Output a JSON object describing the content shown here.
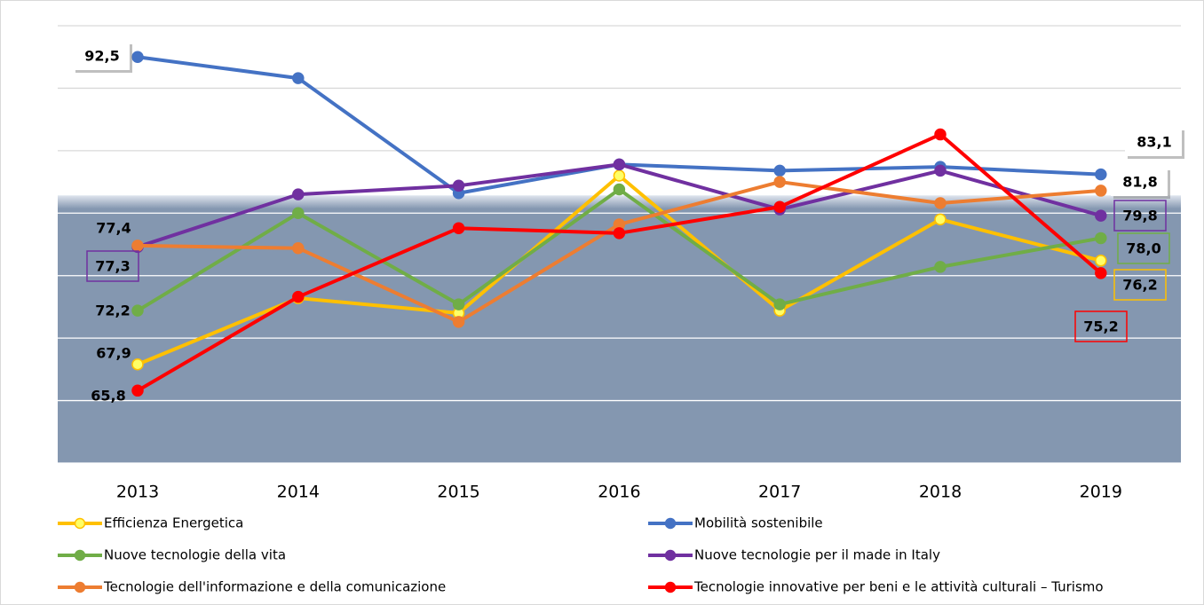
{
  "chart_data": {
    "type": "line",
    "categories": [
      "2013",
      "2014",
      "2015",
      "2016",
      "2017",
      "2018",
      "2019"
    ],
    "ylim": [
      60,
      95
    ],
    "yticks": [
      60,
      65,
      70,
      75,
      80,
      85,
      90,
      95
    ],
    "grid": true,
    "series": [
      {
        "name": "Efficienza Energetica",
        "color": "#ffc000",
        "values": [
          67.9,
          73.2,
          72.0,
          83.0,
          72.2,
          79.5,
          76.2
        ],
        "value_labels": [
          "67,9",
          null,
          null,
          null,
          null,
          null,
          "76,2"
        ]
      },
      {
        "name": "Mobilità sostenibile",
        "color": "#4472c4",
        "values": [
          92.5,
          90.8,
          81.6,
          83.9,
          83.4,
          83.7,
          83.1
        ],
        "value_labels": [
          "92,5",
          null,
          null,
          null,
          null,
          null,
          "83,1"
        ]
      },
      {
        "name": "Nuove tecnologie della vita",
        "color": "#70ad47",
        "values": [
          72.2,
          80.0,
          72.7,
          81.9,
          72.7,
          75.7,
          78.0
        ],
        "value_labels": [
          "72,2",
          null,
          null,
          null,
          null,
          null,
          "78,0"
        ]
      },
      {
        "name": "Nuove tecnologie per il made in Italy",
        "color": "#7030a0",
        "values": [
          77.3,
          81.5,
          82.2,
          83.9,
          80.3,
          83.4,
          79.8
        ],
        "value_labels": [
          "77,3",
          null,
          null,
          null,
          null,
          null,
          "79,8"
        ]
      },
      {
        "name": "Tecnologie dell'informazione e della comunicazione",
        "color": "#ed7d31",
        "values": [
          77.4,
          77.2,
          71.3,
          79.1,
          82.5,
          80.8,
          81.8
        ],
        "value_labels": [
          "77,4",
          null,
          null,
          null,
          null,
          null,
          "81,8"
        ]
      },
      {
        "name": "Tecnologie innovative per beni e le attività culturali – Turismo",
        "color": "#ff0000",
        "values": [
          65.8,
          73.3,
          78.8,
          78.4,
          80.5,
          86.3,
          75.2
        ],
        "value_labels": [
          "65,8",
          null,
          null,
          null,
          null,
          null,
          "75,2"
        ]
      }
    ]
  }
}
